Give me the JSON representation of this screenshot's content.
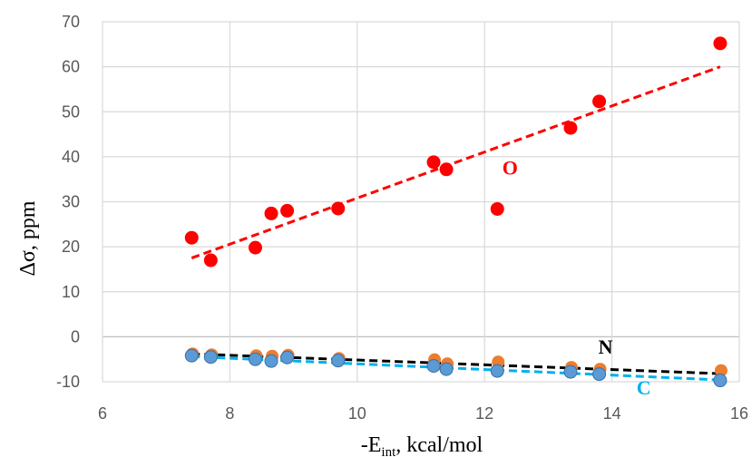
{
  "chart_data": {
    "type": "scatter",
    "title": "",
    "xlabel": "-E",
    "xlabel_sub": "int",
    "xlabel_tail": ", kcal/mol",
    "ylabel": "Δσ, ppm",
    "xlim": [
      6,
      16
    ],
    "ylim": [
      -10,
      70
    ],
    "xticks": [
      "6",
      "8",
      "10",
      "12",
      "14",
      "16"
    ],
    "yticks": [
      "-10",
      "0",
      "10",
      "20",
      "30",
      "40",
      "50",
      "60",
      "70"
    ],
    "grid": true,
    "legend": "none",
    "series": [
      {
        "name": "O",
        "color": "#ff0000",
        "x": [
          7.4,
          7.7,
          8.4,
          8.65,
          8.9,
          9.7,
          11.2,
          11.4,
          12.2,
          13.35,
          13.8,
          15.7
        ],
        "y": [
          22,
          17,
          19.8,
          27.4,
          28,
          28.5,
          38.8,
          37.2,
          28.4,
          46.4,
          52.3,
          65.2
        ],
        "trend": {
          "x": [
            7.4,
            15.7
          ],
          "y": [
            17.5,
            60
          ]
        }
      },
      {
        "name": "N",
        "color": "#000000",
        "x": [
          7.4,
          7.7,
          8.4,
          8.65,
          8.9,
          9.7,
          11.2,
          11.4,
          12.2,
          13.35,
          13.8,
          15.7
        ],
        "y": [
          -4,
          -4.2,
          -4.4,
          -4.5,
          -4.3,
          -5,
          -5.3,
          -6.2,
          -5.8,
          -7,
          -7.4,
          -7.7
        ],
        "trend": {
          "x": [
            7.4,
            15.7
          ],
          "y": [
            -3.8,
            -8.2
          ]
        }
      },
      {
        "name": "C",
        "color": "#00b0f0",
        "x": [
          7.4,
          7.7,
          8.4,
          8.65,
          8.9,
          9.7,
          11.2,
          11.4,
          12.2,
          13.35,
          13.8,
          15.7
        ],
        "y": [
          -4.2,
          -4.5,
          -5,
          -5.4,
          -4.6,
          -5.3,
          -6.5,
          -7.2,
          -7.6,
          -7.8,
          -8.3,
          -9.7
        ],
        "trend": {
          "x": [
            7.4,
            15.7
          ],
          "y": [
            -4.4,
            -9.6
          ]
        }
      }
    ],
    "annotations": [
      {
        "text": "O",
        "x": 12.4,
        "y": 36,
        "color": "#ff0000"
      },
      {
        "text": "N",
        "x": 13.9,
        "y": -3.8,
        "color": "#000000"
      },
      {
        "text": "C",
        "x": 14.5,
        "y": -12.8,
        "color": "#00b0f0"
      }
    ]
  }
}
